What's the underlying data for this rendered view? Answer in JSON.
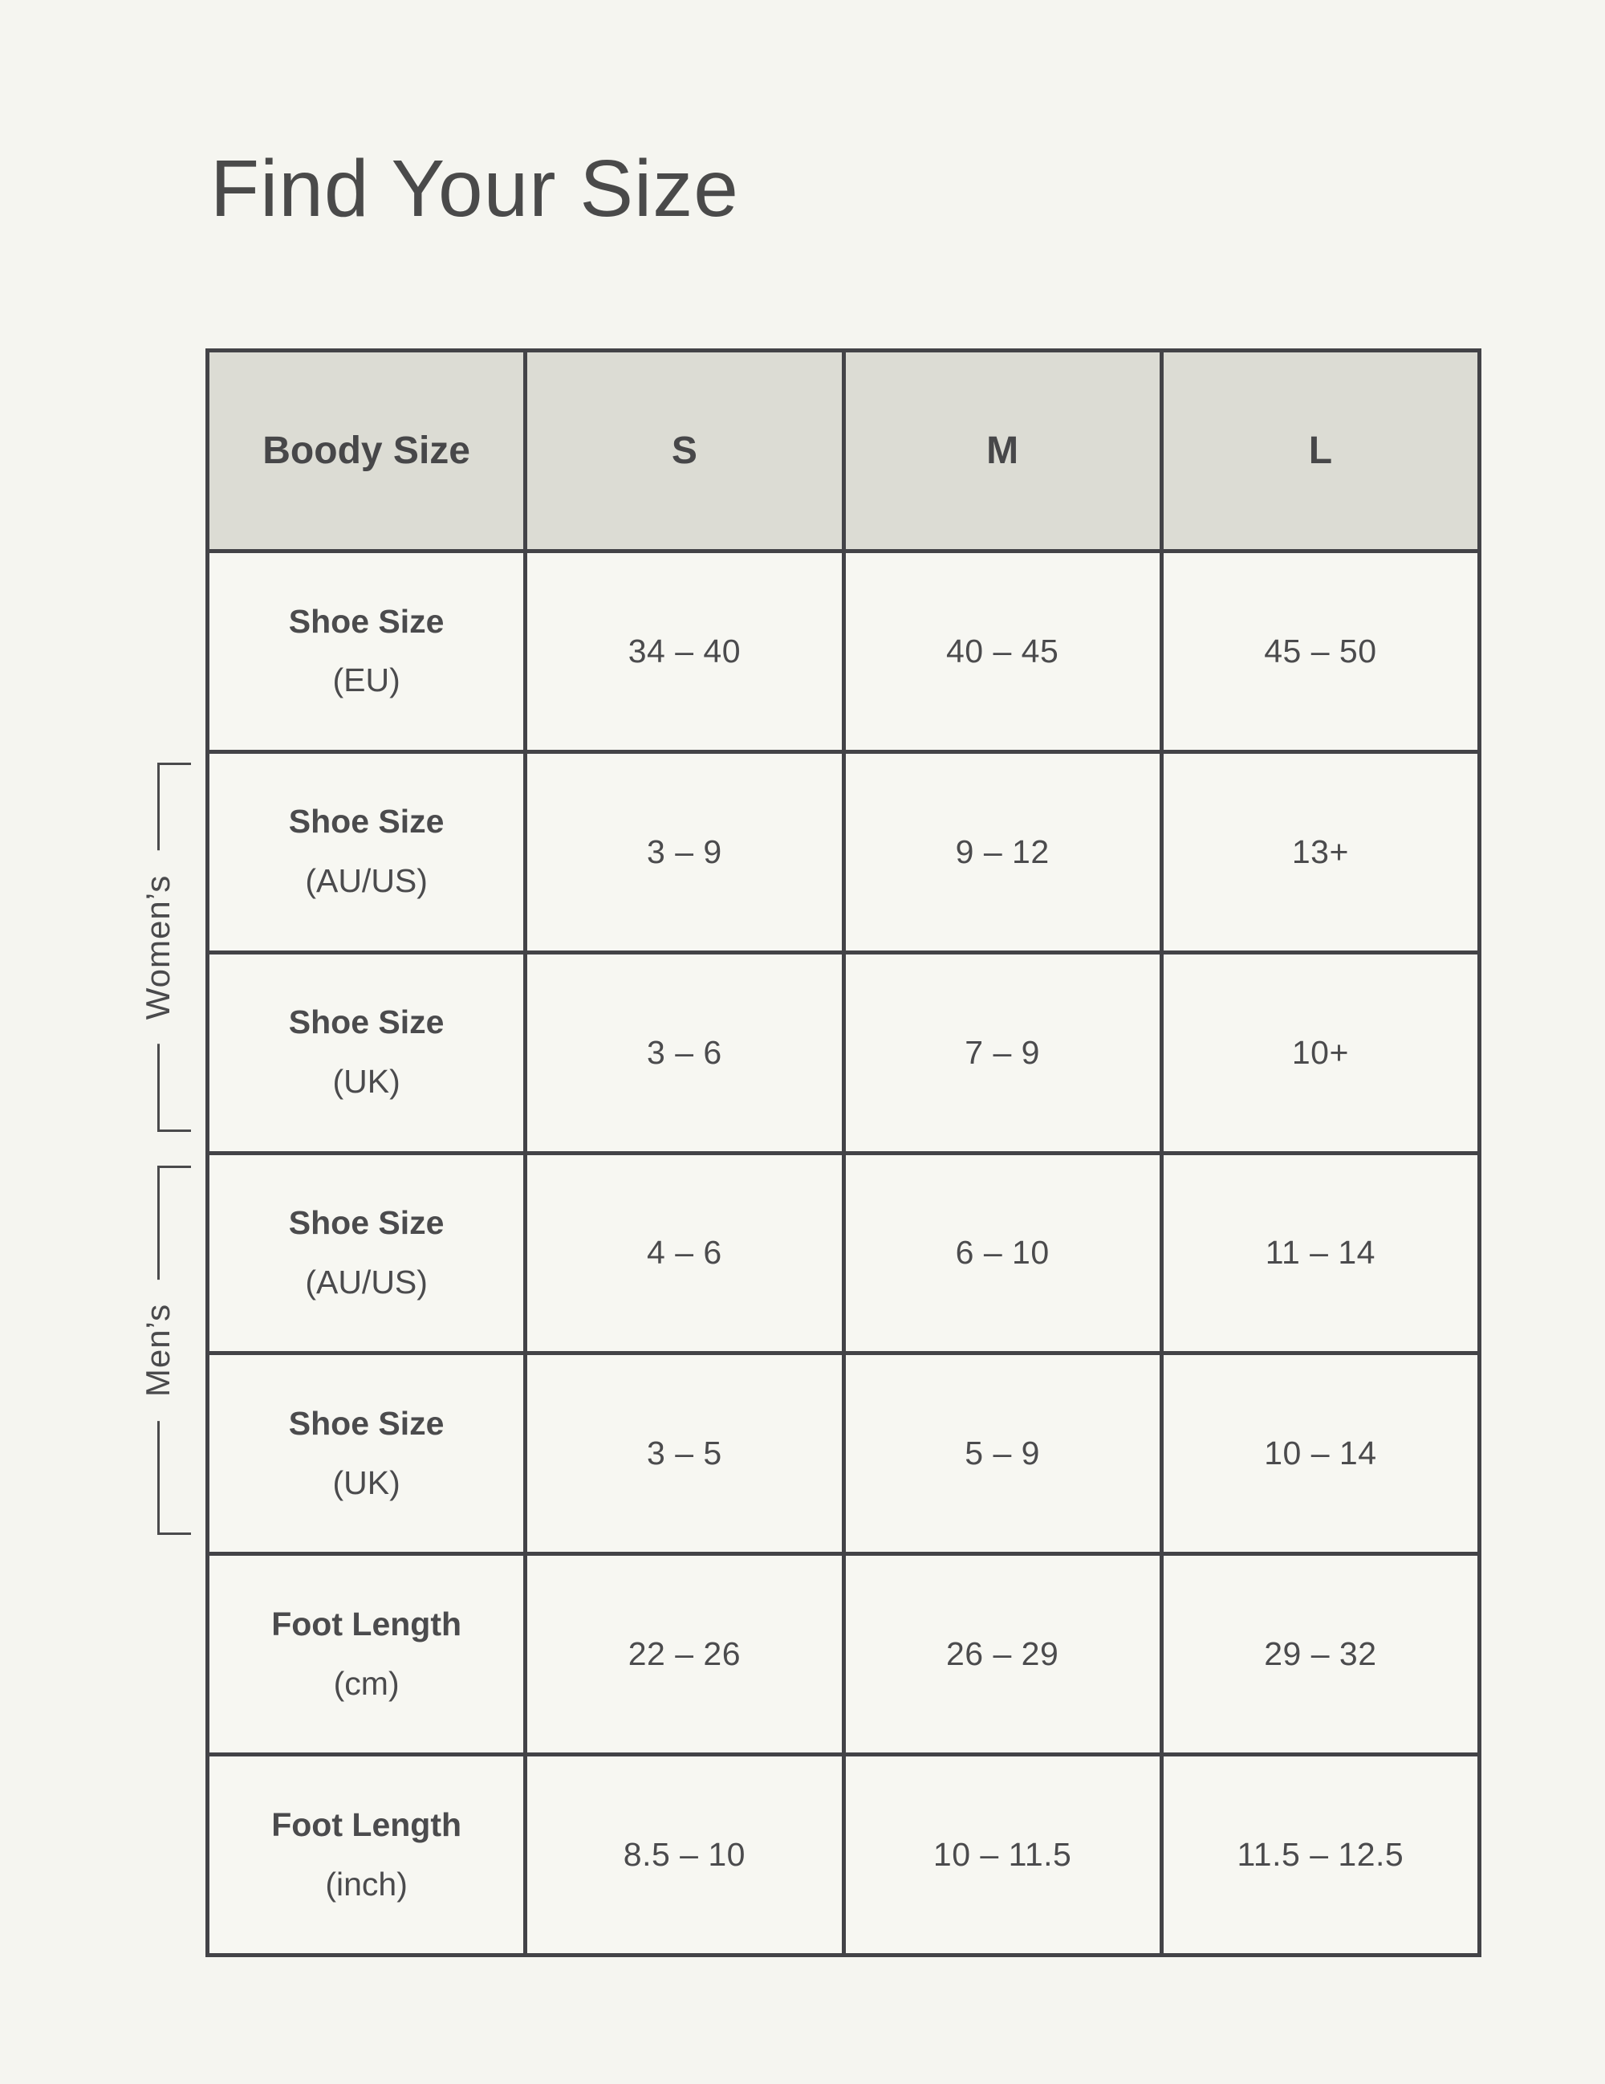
{
  "page": {
    "title": "Find Your Size"
  },
  "colors": {
    "page_background": "#F5F5F0",
    "cell_background": "#F7F7F2",
    "header_background": "#DCDCD4",
    "border": "#434347",
    "text": "#4B4B4D"
  },
  "table": {
    "header": {
      "label": "Boody Size",
      "sizes": [
        "S",
        "M",
        "L"
      ]
    },
    "rows": [
      {
        "label": "Shoe Size",
        "sublabel": "(EU)",
        "group": "",
        "values": [
          "34 – 40",
          "40 – 45",
          "45 – 50"
        ]
      },
      {
        "label": "Shoe Size",
        "sublabel": "(AU/US)",
        "group": "womens",
        "values": [
          "3 – 9",
          "9 – 12",
          "13+"
        ]
      },
      {
        "label": "Shoe Size",
        "sublabel": "(UK)",
        "group": "womens",
        "values": [
          "3 – 6",
          "7 – 9",
          "10+"
        ]
      },
      {
        "label": "Shoe Size",
        "sublabel": "(AU/US)",
        "group": "mens",
        "values": [
          "4 – 6",
          "6 – 10",
          "11 – 14"
        ]
      },
      {
        "label": "Shoe Size",
        "sublabel": "(UK)",
        "group": "mens",
        "values": [
          "3 – 5",
          "5 – 9",
          "10 – 14"
        ]
      },
      {
        "label": "Foot Length",
        "sublabel": "(cm)",
        "group": "",
        "values": [
          "22 – 26",
          "26 – 29",
          "29 – 32"
        ]
      },
      {
        "label": "Foot Length",
        "sublabel": "(inch)",
        "group": "",
        "values": [
          "8.5 – 10",
          "10 – 11.5",
          "11.5 – 12.5"
        ]
      }
    ],
    "groups": [
      {
        "id": "womens",
        "label": "Women’s"
      },
      {
        "id": "mens",
        "label": "Men’s"
      }
    ]
  }
}
